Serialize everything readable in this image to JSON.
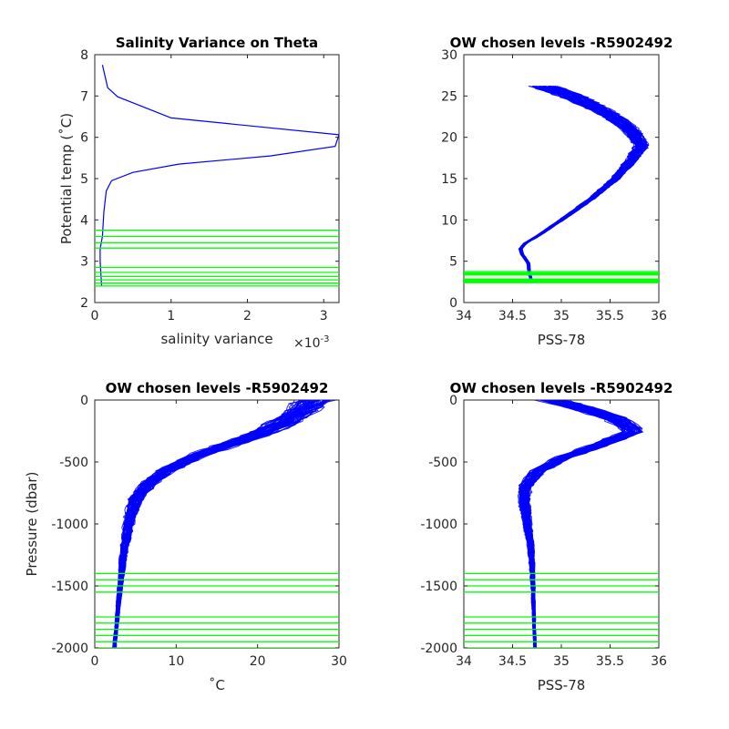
{
  "chart_data": [
    {
      "type": "line",
      "title": "Salinity Variance on Theta",
      "xlabel": "salinity variance",
      "x_exponent_label": "×10",
      "x_exponent_power": "-3",
      "ylabel": "Potential temp (˚C)",
      "xlim": [
        0,
        3.2
      ],
      "ylim": [
        2,
        8
      ],
      "xticks": [
        "0",
        "1",
        "2",
        "3"
      ],
      "xtick_values": [
        0,
        1,
        2,
        3
      ],
      "yticks": [
        "2",
        "3",
        "4",
        "5",
        "6",
        "7",
        "8"
      ],
      "ytick_values": [
        2,
        3,
        4,
        5,
        6,
        7,
        8
      ],
      "series": [
        {
          "color": "#0000ff",
          "points": [
            [
              0.1,
              7.75
            ],
            [
              0.17,
              7.2
            ],
            [
              0.3,
              6.98
            ],
            [
              1.0,
              6.47
            ],
            [
              3.2,
              6.06
            ],
            [
              3.15,
              5.78
            ],
            [
              2.3,
              5.55
            ],
            [
              1.1,
              5.35
            ],
            [
              0.5,
              5.15
            ],
            [
              0.22,
              4.95
            ],
            [
              0.15,
              4.7
            ],
            [
              0.12,
              4.2
            ],
            [
              0.1,
              3.6
            ],
            [
              0.07,
              3.3
            ],
            [
              0.07,
              3.0
            ],
            [
              0.08,
              2.7
            ],
            [
              0.09,
              2.4
            ]
          ]
        }
      ],
      "chosen_levels": [
        3.75,
        3.6,
        3.45,
        3.32,
        2.85,
        2.73,
        2.63,
        2.55,
        2.47,
        2.4
      ],
      "level_color": "#00ff00"
    },
    {
      "type": "line",
      "title": "OW chosen levels -R5902492",
      "xlabel": "PSS-78",
      "ylabel": "",
      "xlim": [
        34,
        36
      ],
      "ylim": [
        0,
        30
      ],
      "xticks": [
        "34",
        "34.5",
        "35",
        "35.5",
        "36"
      ],
      "xtick_values": [
        34,
        34.5,
        35,
        35.5,
        36
      ],
      "yticks": [
        "0",
        "5",
        "10",
        "15",
        "20",
        "25",
        "30"
      ],
      "ytick_values": [
        0,
        5,
        10,
        15,
        20,
        25,
        30
      ],
      "series": [
        {
          "color": "#0000ff",
          "profile": [
            [
              34.7,
              2.4
            ],
            [
              34.67,
              3.5
            ],
            [
              34.66,
              4.8
            ],
            [
              34.6,
              5.8
            ],
            [
              34.58,
              6.5
            ],
            [
              34.63,
              7.2
            ],
            [
              34.75,
              8.0
            ],
            [
              35.0,
              10.0
            ],
            [
              35.3,
              12.5
            ],
            [
              35.55,
              15.0
            ],
            [
              35.7,
              17.0
            ],
            [
              35.82,
              19.0
            ],
            [
              35.7,
              21.0
            ],
            [
              35.45,
              23.0
            ],
            [
              35.1,
              25.0
            ],
            [
              34.8,
              26.2
            ]
          ]
        }
      ],
      "chosen_levels": [
        3.75,
        3.6,
        3.45,
        3.32,
        2.85,
        2.73,
        2.63,
        2.55,
        2.47,
        2.4
      ],
      "level_color": "#00ff00"
    },
    {
      "type": "line",
      "title": "OW chosen levels -R5902492",
      "xlabel": "˚C",
      "ylabel": "Pressure (dbar)",
      "xlim": [
        0,
        30
      ],
      "ylim": [
        -2000,
        0
      ],
      "xticks": [
        "0",
        "10",
        "20",
        "30"
      ],
      "xtick_values": [
        0,
        10,
        20,
        30
      ],
      "yticks": [
        "-2000",
        "-1500",
        "-1000",
        "-500",
        "0"
      ],
      "ytick_values": [
        -2000,
        -1500,
        -1000,
        -500,
        0
      ],
      "series": [
        {
          "color": "#0000ff",
          "profile": [
            [
              2.4,
              -2000
            ],
            [
              2.7,
              -1800
            ],
            [
              3.1,
              -1500
            ],
            [
              3.6,
              -1200
            ],
            [
              4.3,
              -950
            ],
            [
              5.0,
              -800
            ],
            [
              6.5,
              -680
            ],
            [
              9.0,
              -560
            ],
            [
              12.5,
              -450
            ],
            [
              16.0,
              -370
            ],
            [
              20.0,
              -280
            ],
            [
              23.5,
              -170
            ],
            [
              25.5,
              -80
            ],
            [
              27.0,
              0
            ]
          ]
        }
      ],
      "chosen_levels": [
        -1400,
        -1450,
        -1500,
        -1550,
        -1750,
        -1800,
        -1850,
        -1900,
        -1950,
        -2000
      ],
      "level_color": "#00ff00"
    },
    {
      "type": "line",
      "title": "OW chosen levels -R5902492",
      "xlabel": "PSS-78",
      "ylabel": "",
      "xlim": [
        34,
        36
      ],
      "ylim": [
        -2000,
        0
      ],
      "xticks": [
        "34",
        "34.5",
        "35",
        "35.5",
        "36"
      ],
      "xtick_values": [
        34,
        34.5,
        35,
        35.5,
        36
      ],
      "yticks": [
        "-2000",
        "-1500",
        "-1000",
        "-500",
        "0"
      ],
      "ytick_values": [
        -2000,
        -1500,
        -1000,
        -500,
        0
      ],
      "series": [
        {
          "color": "#0000ff",
          "profile": [
            [
              34.73,
              -2000
            ],
            [
              34.72,
              -1800
            ],
            [
              34.71,
              -1500
            ],
            [
              34.69,
              -1200
            ],
            [
              34.65,
              -1000
            ],
            [
              34.62,
              -820
            ],
            [
              34.63,
              -700
            ],
            [
              34.75,
              -580
            ],
            [
              35.0,
              -470
            ],
            [
              35.4,
              -360
            ],
            [
              35.75,
              -250
            ],
            [
              35.55,
              -150
            ],
            [
              35.2,
              -60
            ],
            [
              34.9,
              0
            ]
          ]
        }
      ],
      "chosen_levels": [
        -1400,
        -1450,
        -1500,
        -1550,
        -1750,
        -1800,
        -1850,
        -1900,
        -1950,
        -2000
      ],
      "level_color": "#00ff00"
    }
  ]
}
